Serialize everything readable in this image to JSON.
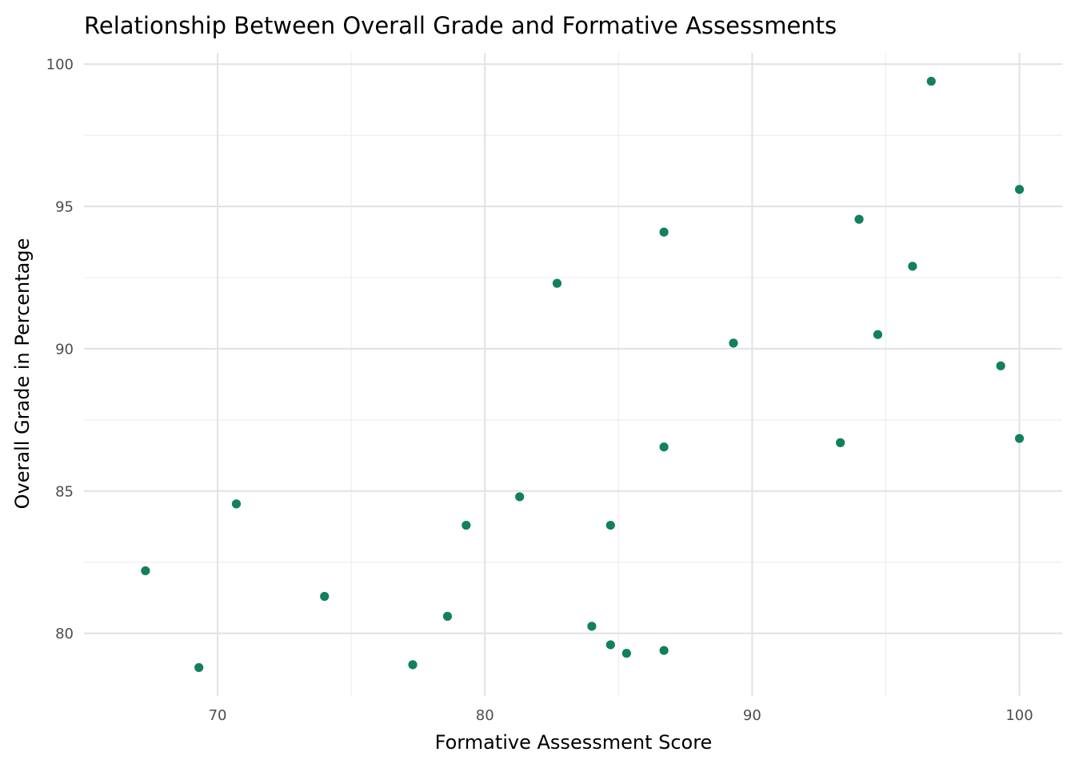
{
  "chart_data": {
    "type": "scatter",
    "title": "Relationship Between Overall Grade and Formative Assessments",
    "xlabel": "Formative Assessment Score",
    "ylabel": "Overall Grade in Percentage",
    "xlim": [
      65,
      101.6
    ],
    "ylim": [
      77.8,
      100.4
    ],
    "x_ticks": [
      70,
      80,
      90,
      100
    ],
    "y_ticks": [
      80,
      85,
      90,
      95,
      100
    ],
    "x_minor_ticks": [
      75,
      85,
      95
    ],
    "y_minor_ticks": [
      82.5,
      87.5,
      92.5,
      97.5
    ],
    "grid": true,
    "point_color": "#12805c",
    "series": [
      {
        "points": [
          {
            "x": 96.7,
            "y": 99.4
          },
          {
            "x": 100.0,
            "y": 95.6
          },
          {
            "x": 94.0,
            "y": 94.55
          },
          {
            "x": 86.7,
            "y": 94.1
          },
          {
            "x": 96.0,
            "y": 92.9
          },
          {
            "x": 82.7,
            "y": 92.3
          },
          {
            "x": 94.7,
            "y": 90.5
          },
          {
            "x": 89.3,
            "y": 90.2
          },
          {
            "x": 99.3,
            "y": 89.4
          },
          {
            "x": 100.0,
            "y": 86.85
          },
          {
            "x": 93.3,
            "y": 86.7
          },
          {
            "x": 86.7,
            "y": 86.55
          },
          {
            "x": 81.3,
            "y": 84.8
          },
          {
            "x": 70.7,
            "y": 84.55
          },
          {
            "x": 79.3,
            "y": 83.8
          },
          {
            "x": 84.7,
            "y": 83.8
          },
          {
            "x": 67.3,
            "y": 82.2
          },
          {
            "x": 74.0,
            "y": 81.3
          },
          {
            "x": 78.6,
            "y": 80.6
          },
          {
            "x": 84.0,
            "y": 80.25
          },
          {
            "x": 84.7,
            "y": 79.6
          },
          {
            "x": 86.7,
            "y": 79.4
          },
          {
            "x": 85.3,
            "y": 79.3
          },
          {
            "x": 77.3,
            "y": 78.9
          },
          {
            "x": 69.3,
            "y": 78.8
          }
        ]
      }
    ]
  }
}
